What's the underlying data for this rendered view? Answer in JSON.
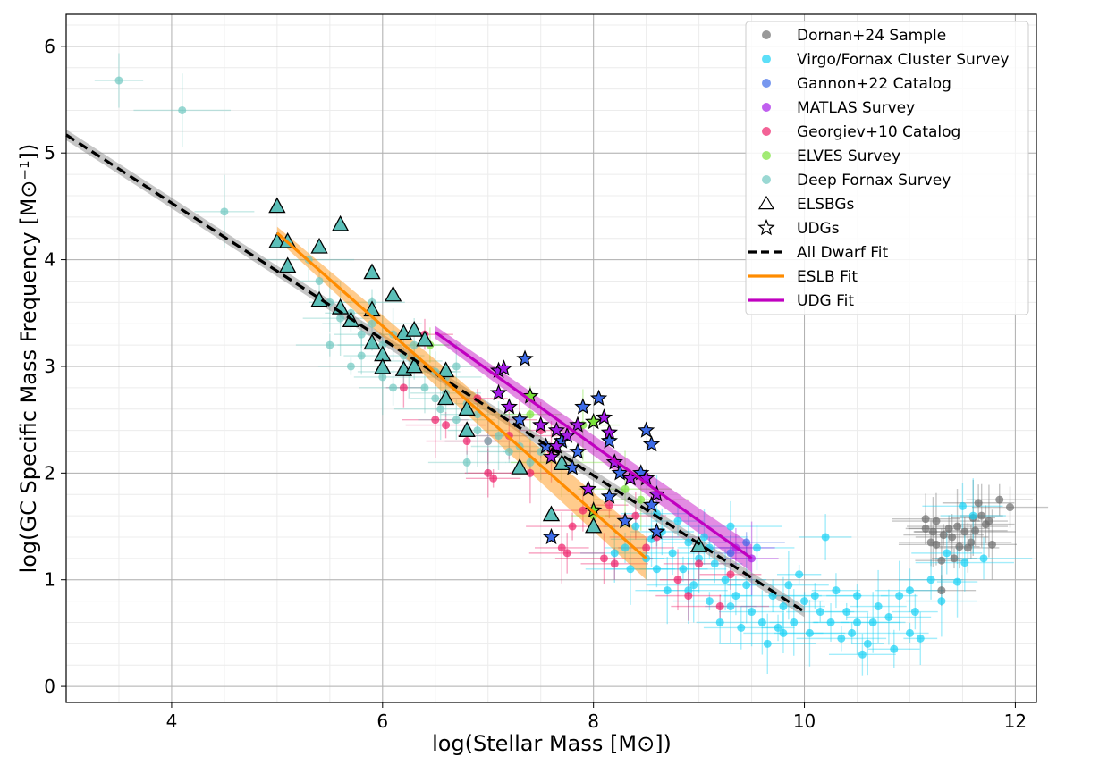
{
  "chart_data": {
    "type": "scatter",
    "xlabel": "log(Stellar Mass [M⊙])",
    "ylabel": "log(GC Specific Mass Frequency [M⊙⁻¹])",
    "xlim": [
      3.0,
      12.2
    ],
    "ylim": [
      -0.15,
      6.3
    ],
    "xticks": [
      4,
      6,
      8,
      10,
      12
    ],
    "yticks": [
      0,
      1,
      2,
      3,
      4,
      5,
      6
    ],
    "grid": true,
    "legend_position": "top-right",
    "colors": {
      "dornan": "#6e6e6e",
      "virgo": "#18d2f5",
      "gannon": "#3d6be8",
      "matlas": "#a51be8",
      "georgiev": "#ee1f6a",
      "elves": "#7ae33a",
      "deep_fornax": "#6fc7c1",
      "esbg_fill": "#5bbfb8",
      "udg_fill": "#3d6be8",
      "dwarf_fit": "#000000",
      "eslb_fit": "#ff8c00",
      "udg_fit": "#c000c0"
    },
    "legend": [
      {
        "label": "Dornan+24 Sample",
        "kind": "dot",
        "color": "#6e6e6e"
      },
      {
        "label": "Virgo/Fornax Cluster Survey",
        "kind": "dot",
        "color": "#18d2f5"
      },
      {
        "label": "Gannon+22 Catalog",
        "kind": "dot",
        "color": "#3d6be8"
      },
      {
        "label": "MATLAS Survey",
        "kind": "dot",
        "color": "#a51be8"
      },
      {
        "label": "Georgiev+10 Catalog",
        "kind": "dot",
        "color": "#ee1f6a"
      },
      {
        "label": "ELVES Survey",
        "kind": "dot",
        "color": "#7ae33a"
      },
      {
        "label": "Deep Fornax Survey",
        "kind": "dot",
        "color": "#6fc7c1"
      },
      {
        "label": "ELSBGs",
        "kind": "triangle",
        "color": "#000000"
      },
      {
        "label": "UDGs",
        "kind": "star",
        "color": "#000000"
      },
      {
        "label": "All Dwarf Fit",
        "kind": "dashed",
        "color": "#000000"
      },
      {
        "label": "ESLB Fit",
        "kind": "line",
        "color": "#ff8c00"
      },
      {
        "label": "UDG Fit",
        "kind": "line",
        "color": "#c000c0"
      }
    ],
    "fits": [
      {
        "name": "All Dwarf Fit",
        "x": [
          3.0,
          10.0
        ],
        "y": [
          5.17,
          0.7
        ],
        "band": 0.05,
        "color": "#000000",
        "band_color": "#808080",
        "dash": true
      },
      {
        "name": "ESLB Fit",
        "x": [
          5.0,
          8.5
        ],
        "y": [
          4.25,
          1.2
        ],
        "band_start": 0.06,
        "band_end": 0.2,
        "color": "#ff8c00",
        "band_color": "#ff8c00",
        "dash": false
      },
      {
        "name": "UDG Fit",
        "x": [
          6.5,
          9.5
        ],
        "y": [
          3.32,
          1.2
        ],
        "band_start": 0.06,
        "band_end": 0.13,
        "color": "#c000c0",
        "band_color": "#c000c0",
        "dash": false
      }
    ],
    "series": [
      {
        "name": "Dornan+24 Sample",
        "color": "#6e6e6e",
        "points": [
          [
            11.15,
            1.57
          ],
          [
            11.15,
            1.48
          ],
          [
            11.2,
            1.35
          ],
          [
            11.22,
            1.45
          ],
          [
            11.25,
            1.33
          ],
          [
            11.3,
            1.18
          ],
          [
            11.32,
            1.42
          ],
          [
            11.3,
            0.9
          ],
          [
            11.37,
            1.48
          ],
          [
            11.4,
            1.4
          ],
          [
            11.42,
            1.2
          ],
          [
            11.45,
            1.5
          ],
          [
            11.47,
            1.31
          ],
          [
            11.52,
            1.45
          ],
          [
            11.55,
            1.3
          ],
          [
            11.58,
            1.35
          ],
          [
            11.6,
            1.58
          ],
          [
            11.62,
            1.46
          ],
          [
            11.65,
            1.72
          ],
          [
            11.68,
            1.6
          ],
          [
            11.72,
            1.52
          ],
          [
            11.75,
            1.55
          ],
          [
            11.78,
            1.33
          ],
          [
            11.85,
            1.75
          ],
          [
            11.95,
            1.68
          ],
          [
            11.25,
            1.55
          ]
        ]
      },
      {
        "name": "Virgo/Fornax Cluster Survey",
        "color": "#18d2f5",
        "points": [
          [
            8.3,
            1.3
          ],
          [
            8.4,
            1.5
          ],
          [
            8.5,
            1.2
          ],
          [
            8.55,
            1.38
          ],
          [
            8.6,
            1.1
          ],
          [
            8.65,
            1.45
          ],
          [
            8.7,
            0.9
          ],
          [
            8.75,
            1.25
          ],
          [
            8.8,
            1.55
          ],
          [
            8.85,
            1.1
          ],
          [
            8.9,
            1.35
          ],
          [
            8.95,
            0.95
          ],
          [
            9.0,
            1.2
          ],
          [
            9.05,
            1.4
          ],
          [
            9.1,
            0.8
          ],
          [
            9.15,
            1.15
          ],
          [
            9.2,
            0.6
          ],
          [
            9.25,
            1.0
          ],
          [
            9.3,
            0.75
          ],
          [
            9.35,
            0.85
          ],
          [
            9.4,
            0.55
          ],
          [
            9.45,
            0.95
          ],
          [
            9.5,
            0.7
          ],
          [
            9.55,
            1.3
          ],
          [
            9.6,
            0.6
          ],
          [
            9.7,
            0.85
          ],
          [
            9.75,
            0.55
          ],
          [
            9.8,
            0.75
          ],
          [
            9.85,
            0.95
          ],
          [
            9.9,
            0.6
          ],
          [
            9.95,
            1.05
          ],
          [
            10.0,
            0.8
          ],
          [
            10.05,
            0.5
          ],
          [
            10.1,
            0.85
          ],
          [
            10.15,
            0.7
          ],
          [
            10.2,
            1.4
          ],
          [
            10.25,
            0.6
          ],
          [
            10.3,
            0.9
          ],
          [
            10.35,
            0.45
          ],
          [
            10.4,
            0.7
          ],
          [
            10.45,
            0.5
          ],
          [
            10.5,
            0.85
          ],
          [
            10.55,
            0.3
          ],
          [
            10.6,
            0.4
          ],
          [
            10.65,
            0.6
          ],
          [
            10.7,
            0.75
          ],
          [
            10.8,
            0.65
          ],
          [
            10.85,
            0.35
          ],
          [
            10.9,
            0.85
          ],
          [
            11.0,
            0.5
          ],
          [
            11.05,
            0.7
          ],
          [
            11.1,
            0.45
          ],
          [
            11.2,
            1.0
          ],
          [
            11.3,
            0.8
          ],
          [
            11.35,
            1.25
          ],
          [
            11.45,
            0.98
          ],
          [
            11.5,
            1.69
          ],
          [
            11.52,
            1.16
          ],
          [
            11.6,
            1.6
          ],
          [
            11.7,
            1.2
          ],
          [
            8.2,
            1.25
          ],
          [
            8.35,
            1.1
          ],
          [
            8.6,
            1.62
          ],
          [
            8.9,
            0.9
          ],
          [
            9.1,
            1.3
          ],
          [
            9.3,
            1.5
          ],
          [
            9.8,
            0.5
          ],
          [
            10.5,
            0.6
          ],
          [
            11.0,
            0.9
          ],
          [
            9.65,
            0.4
          ]
        ]
      },
      {
        "name": "Georgiev+10 Catalog",
        "color": "#ee1f6a",
        "points": [
          [
            6.2,
            2.8
          ],
          [
            6.5,
            2.5
          ],
          [
            6.6,
            2.45
          ],
          [
            6.8,
            2.3
          ],
          [
            7.0,
            2.0
          ],
          [
            7.05,
            1.95
          ],
          [
            7.2,
            2.35
          ],
          [
            7.3,
            2.5
          ],
          [
            7.5,
            2.4
          ],
          [
            7.6,
            2.2
          ],
          [
            7.7,
            1.3
          ],
          [
            7.75,
            1.25
          ],
          [
            7.8,
            1.5
          ],
          [
            7.9,
            1.65
          ],
          [
            8.1,
            1.2
          ],
          [
            8.15,
            1.7
          ],
          [
            8.2,
            1.15
          ],
          [
            8.4,
            1.6
          ],
          [
            8.5,
            1.3
          ],
          [
            8.8,
            1.0
          ],
          [
            8.9,
            0.85
          ],
          [
            9.2,
            0.75
          ],
          [
            9.3,
            1.05
          ],
          [
            6.9,
            2.7
          ],
          [
            7.4,
            2.0
          ],
          [
            8.6,
            1.4
          ],
          [
            9.0,
            1.15
          ],
          [
            6.4,
            3.3
          ],
          [
            7.0,
            2.3
          ]
        ]
      },
      {
        "name": "Deep Fornax Survey",
        "color": "#6fc7c1",
        "points": [
          [
            3.5,
            5.68
          ],
          [
            4.1,
            5.4
          ],
          [
            4.5,
            4.45
          ],
          [
            5.3,
            4.0
          ],
          [
            5.4,
            3.8
          ],
          [
            5.5,
            3.6
          ],
          [
            5.6,
            3.45
          ],
          [
            5.7,
            3.5
          ],
          [
            5.8,
            3.3
          ],
          [
            5.9,
            3.4
          ],
          [
            6.0,
            3.2
          ],
          [
            6.1,
            3.3
          ],
          [
            6.2,
            3.1
          ],
          [
            6.25,
            2.95
          ],
          [
            6.3,
            3.05
          ],
          [
            6.4,
            2.8
          ],
          [
            6.5,
            2.95
          ],
          [
            6.55,
            2.6
          ],
          [
            6.6,
            2.75
          ],
          [
            6.7,
            2.5
          ],
          [
            6.8,
            2.65
          ],
          [
            6.9,
            2.4
          ],
          [
            7.0,
            2.3
          ],
          [
            7.1,
            2.35
          ],
          [
            7.2,
            2.2
          ],
          [
            7.3,
            2.25
          ],
          [
            7.4,
            2.1
          ],
          [
            5.8,
            3.1
          ],
          [
            6.0,
            2.9
          ],
          [
            6.3,
            3.2
          ],
          [
            6.6,
            2.9
          ],
          [
            5.9,
            3.6
          ],
          [
            6.1,
            2.8
          ],
          [
            6.5,
            2.7
          ],
          [
            6.9,
            2.55
          ],
          [
            7.5,
            2.2
          ],
          [
            5.5,
            3.2
          ],
          [
            6.7,
            3.0
          ],
          [
            5.7,
            3.0
          ],
          [
            6.8,
            2.1
          ]
        ]
      },
      {
        "name": "ELVES Survey",
        "color": "#7ae33a",
        "points": [
          [
            6.45,
            3.2
          ],
          [
            7.4,
            2.55
          ],
          [
            7.7,
            2.1
          ],
          [
            8.0,
            1.6
          ],
          [
            8.3,
            1.85
          ],
          [
            8.45,
            1.75
          ],
          [
            7.9,
            2.45
          ]
        ]
      },
      {
        "name": "Gannon+22 Catalog",
        "color": "#3d6be8",
        "points": [
          [
            9.3,
            1.25
          ],
          [
            9.45,
            1.35
          ]
        ]
      },
      {
        "name": "MATLAS Survey",
        "color": "#a51be8",
        "points": [
          [
            9.35,
            1.3
          ],
          [
            9.5,
            1.2
          ]
        ]
      }
    ],
    "elsbgs": [
      [
        5.0,
        4.5
      ],
      [
        5.0,
        4.17
      ],
      [
        5.1,
        4.17
      ],
      [
        5.1,
        3.94
      ],
      [
        5.4,
        4.12
      ],
      [
        5.4,
        3.62
      ],
      [
        5.6,
        4.33
      ],
      [
        5.6,
        3.55
      ],
      [
        5.7,
        3.43
      ],
      [
        5.9,
        3.88
      ],
      [
        5.9,
        3.53
      ],
      [
        5.9,
        3.22
      ],
      [
        6.0,
        3.11
      ],
      [
        6.0,
        2.99
      ],
      [
        6.1,
        3.67
      ],
      [
        6.2,
        3.31
      ],
      [
        6.2,
        2.97
      ],
      [
        6.3,
        3.34
      ],
      [
        6.3,
        3.0
      ],
      [
        6.4,
        3.25
      ],
      [
        6.6,
        2.96
      ],
      [
        6.6,
        2.7
      ],
      [
        6.8,
        2.6
      ],
      [
        6.8,
        2.4
      ],
      [
        7.3,
        2.05
      ],
      [
        7.7,
        2.09
      ],
      [
        7.6,
        1.61
      ],
      [
        8.0,
        1.5
      ],
      [
        9.0,
        1.32
      ]
    ],
    "udgs": [
      [
        7.1,
        2.96
      ],
      [
        7.15,
        2.98
      ],
      [
        7.35,
        3.07
      ],
      [
        7.1,
        2.75
      ],
      [
        7.2,
        2.62
      ],
      [
        7.3,
        2.5
      ],
      [
        7.4,
        2.72
      ],
      [
        7.5,
        2.45
      ],
      [
        7.55,
        2.25
      ],
      [
        7.6,
        2.15
      ],
      [
        7.65,
        2.4
      ],
      [
        7.7,
        2.3
      ],
      [
        7.75,
        2.35
      ],
      [
        7.8,
        2.05
      ],
      [
        7.85,
        2.2
      ],
      [
        7.9,
        2.62
      ],
      [
        8.0,
        2.48
      ],
      [
        8.05,
        2.7
      ],
      [
        8.1,
        2.52
      ],
      [
        8.15,
        2.38
      ],
      [
        8.15,
        2.3
      ],
      [
        8.2,
        2.1
      ],
      [
        8.25,
        2.0
      ],
      [
        8.35,
        1.95
      ],
      [
        8.45,
        2.0
      ],
      [
        8.5,
        2.4
      ],
      [
        8.55,
        2.27
      ],
      [
        8.5,
        1.95
      ],
      [
        8.6,
        1.8
      ],
      [
        8.6,
        1.45
      ],
      [
        8.55,
        1.7
      ],
      [
        8.3,
        1.55
      ],
      [
        8.15,
        1.78
      ],
      [
        7.95,
        1.85
      ],
      [
        8.0,
        1.65
      ],
      [
        7.6,
        1.4
      ],
      [
        7.85,
        2.45
      ],
      [
        7.65,
        2.25
      ]
    ],
    "udg_colors": [
      "#a51be8",
      "#a51be8",
      "#3d6be8",
      "#a51be8",
      "#a51be8",
      "#3d6be8",
      "#7ae33a",
      "#a51be8",
      "#3d6be8",
      "#a51be8",
      "#a51be8",
      "#3d6be8",
      "#a51be8",
      "#3d6be8",
      "#3d6be8",
      "#3d6be8",
      "#7ae33a",
      "#3d6be8",
      "#a51be8",
      "#a51be8",
      "#3d6be8",
      "#a51be8",
      "#3d6be8",
      "#a51be8",
      "#3d6be8",
      "#3d6be8",
      "#3d6be8",
      "#a51be8",
      "#a51be8",
      "#3d6be8",
      "#3d6be8",
      "#3d6be8",
      "#3d6be8",
      "#a51be8",
      "#7ae33a",
      "#3d6be8",
      "#a51be8",
      "#a51be8"
    ]
  }
}
